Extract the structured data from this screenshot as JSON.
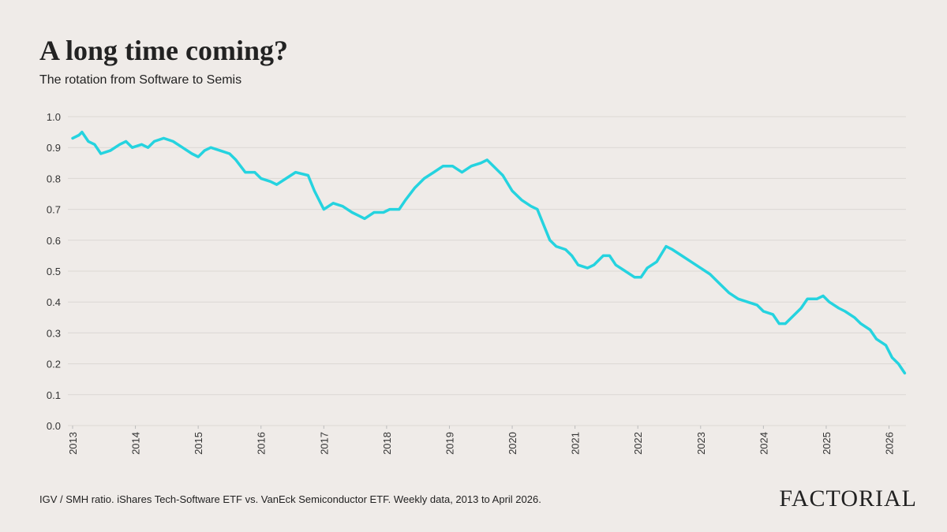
{
  "chart_data": {
    "type": "line",
    "title": "A long time coming?",
    "subtitle": "The rotation from Software to Semis",
    "note": "IGV / SMH ratio. iShares Tech-Software ETF vs. VanEck Semiconductor ETF. Weekly data, 2013 to April 2026.",
    "brand": "FACTORIAL",
    "color": "#25d3df",
    "grid": true,
    "xlim": [
      2013,
      2026.27
    ],
    "xticks": [
      2013,
      2014,
      2015,
      2016,
      2017,
      2018,
      2019,
      2020,
      2021,
      2022,
      2023,
      2024,
      2025,
      2026
    ],
    "ylim": [
      0,
      1
    ],
    "yticks": [
      {
        "value": 0,
        "label": "0.0"
      },
      0.1,
      0.2,
      0.3,
      0.4,
      0.5,
      0.6,
      0.7,
      0.8,
      0.9,
      {
        "value": 1,
        "label": "1.0"
      }
    ],
    "x": [
      2013.0,
      2013.1,
      2013.15,
      2013.25,
      2013.35,
      2013.45,
      2013.6,
      2013.75,
      2013.85,
      2013.95,
      2014.1,
      2014.2,
      2014.3,
      2014.45,
      2014.6,
      2014.75,
      2014.9,
      2015.0,
      2015.1,
      2015.2,
      2015.35,
      2015.5,
      2015.6,
      2015.75,
      2015.9,
      2016.0,
      2016.15,
      2016.25,
      2016.4,
      2016.55,
      2016.75,
      2016.85,
      2016.95,
      2017.0,
      2017.15,
      2017.3,
      2017.45,
      2017.55,
      2017.65,
      2017.8,
      2017.95,
      2018.05,
      2018.2,
      2018.3,
      2018.45,
      2018.6,
      2018.75,
      2018.9,
      2019.05,
      2019.2,
      2019.35,
      2019.5,
      2019.6,
      2019.7,
      2019.85,
      2020.0,
      2020.15,
      2020.3,
      2020.4,
      2020.5,
      2020.6,
      2020.7,
      2020.85,
      2020.95,
      2021.05,
      2021.2,
      2021.3,
      2021.45,
      2021.55,
      2021.65,
      2021.8,
      2021.95,
      2022.05,
      2022.15,
      2022.3,
      2022.45,
      2022.55,
      2022.7,
      2022.85,
      2023.0,
      2023.15,
      2023.3,
      2023.45,
      2023.6,
      2023.75,
      2023.9,
      2024.0,
      2024.15,
      2024.25,
      2024.35,
      2024.45,
      2024.6,
      2024.7,
      2024.85,
      2024.95,
      2025.05,
      2025.2,
      2025.3,
      2025.45,
      2025.55,
      2025.7,
      2025.8,
      2025.95,
      2026.05,
      2026.15,
      2026.25
    ],
    "values": [
      0.93,
      0.94,
      0.95,
      0.92,
      0.91,
      0.88,
      0.89,
      0.91,
      0.92,
      0.9,
      0.91,
      0.9,
      0.92,
      0.93,
      0.92,
      0.9,
      0.88,
      0.87,
      0.89,
      0.9,
      0.89,
      0.88,
      0.86,
      0.82,
      0.82,
      0.8,
      0.79,
      0.78,
      0.8,
      0.82,
      0.81,
      0.76,
      0.72,
      0.7,
      0.72,
      0.71,
      0.69,
      0.68,
      0.67,
      0.69,
      0.69,
      0.7,
      0.7,
      0.73,
      0.77,
      0.8,
      0.82,
      0.84,
      0.84,
      0.82,
      0.84,
      0.85,
      0.86,
      0.84,
      0.81,
      0.76,
      0.73,
      0.71,
      0.7,
      0.65,
      0.6,
      0.58,
      0.57,
      0.55,
      0.52,
      0.51,
      0.52,
      0.55,
      0.55,
      0.52,
      0.5,
      0.48,
      0.48,
      0.51,
      0.53,
      0.58,
      0.57,
      0.55,
      0.53,
      0.51,
      0.49,
      0.46,
      0.43,
      0.41,
      0.4,
      0.39,
      0.37,
      0.36,
      0.33,
      0.33,
      0.35,
      0.38,
      0.41,
      0.41,
      0.42,
      0.4,
      0.38,
      0.37,
      0.35,
      0.33,
      0.31,
      0.28,
      0.26,
      0.22,
      0.2,
      0.17
    ]
  }
}
